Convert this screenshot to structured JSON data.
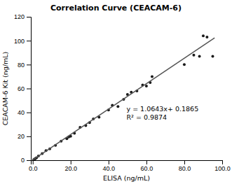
{
  "chart_data": {
    "type": "scatter",
    "title": "Correlation Curve (CEACAM-6)",
    "xlabel": "ELISA (ng/mL)",
    "ylabel": "CEACAM-6 Kit (ng/mL)",
    "series": [
      {
        "type": "scatter",
        "color": "#1a1a1a",
        "x": [
          0.5,
          1.0,
          1.5,
          2.0,
          3.0,
          5.0,
          7.0,
          9.0,
          12.0,
          15.0,
          18.0,
          19.0,
          20.0,
          22.0,
          25.0,
          28.0,
          30.0,
          32.0,
          35.0,
          40.0,
          42.0,
          45.0,
          48.0,
          50.0,
          52.0,
          55.0,
          58.0,
          60.0,
          62.0,
          63.0,
          80.0,
          85.0,
          88.0,
          90.0,
          92.0,
          95.0
        ],
        "values": [
          0.5,
          1.0,
          1.5,
          2.0,
          3.5,
          5.5,
          8.0,
          9.5,
          12.5,
          16.0,
          18.0,
          19.5,
          20.0,
          22.5,
          27.5,
          29.0,
          31.5,
          34.5,
          36.0,
          42.0,
          46.0,
          45.0,
          51.0,
          55.0,
          57.0,
          58.0,
          63.0,
          62.0,
          65.0,
          70.0,
          80.0,
          88.0,
          87.0,
          104.0,
          103.0,
          87.0
        ]
      },
      {
        "type": "line",
        "color": "#555555",
        "x": [
          0,
          96
        ],
        "values": [
          0.1865,
          102.3593
        ]
      }
    ],
    "annotations": [
      "y = 1.0643x+ 0.1865",
      "R² = 0.9874"
    ],
    "xlim": [
      -1,
      100
    ],
    "ylim": [
      0,
      120
    ],
    "xticks": [
      {
        "value": 0,
        "label": "0.0"
      },
      {
        "value": 20,
        "label": "20.0"
      },
      {
        "value": 40,
        "label": "40.0"
      },
      {
        "value": 60,
        "label": "60.0"
      },
      {
        "value": 80,
        "label": "80.0"
      },
      {
        "value": 100,
        "label": "100.0"
      }
    ],
    "yticks": [
      0,
      20,
      40,
      60,
      80,
      100,
      120
    ],
    "grid": false
  }
}
